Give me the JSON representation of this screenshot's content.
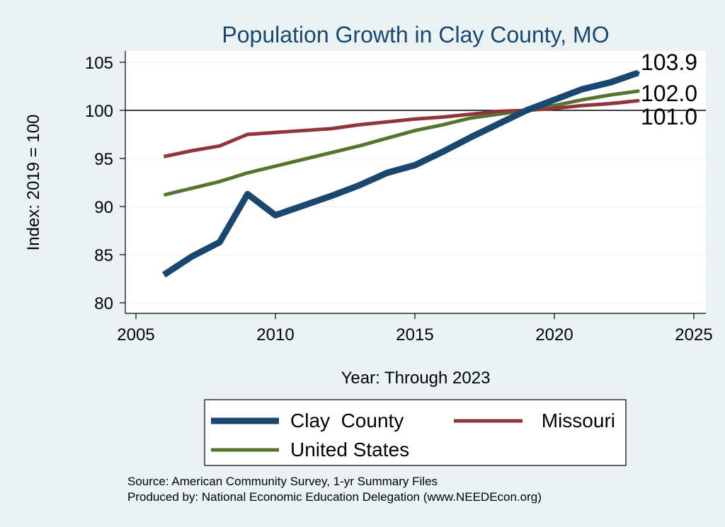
{
  "chart_data": {
    "type": "line",
    "title": "Population Growth in Clay County, MO",
    "xlabel": "Year: Through 2023",
    "ylabel": "Index: 2019 = 100",
    "xlim": [
      2005,
      2025
    ],
    "ylim": [
      80,
      105
    ],
    "x_ticks": [
      "2005",
      "2010",
      "2015",
      "2020",
      "2025"
    ],
    "y_ticks": [
      "80",
      "85",
      "90",
      "95",
      "100",
      "105"
    ],
    "reference_line": 100,
    "grid": true,
    "legend_position": "bottom",
    "x": [
      2006,
      2007,
      2008,
      2009,
      2010,
      2011,
      2012,
      2013,
      2014,
      2015,
      2016,
      2017,
      2018,
      2019,
      2020,
      2021,
      2022,
      2023
    ],
    "series": [
      {
        "name": "Clay  County",
        "color": "#1a476f",
        "values": [
          82.9,
          84.8,
          86.3,
          91.3,
          89.1,
          90.1,
          91.1,
          92.2,
          93.5,
          94.3,
          95.7,
          97.2,
          98.6,
          100.0,
          101.1,
          102.2,
          102.9,
          103.9
        ],
        "end_label": "103.9"
      },
      {
        "name": "Missouri",
        "color": "#90353b",
        "values": [
          95.2,
          95.8,
          96.3,
          97.5,
          97.7,
          97.9,
          98.1,
          98.5,
          98.8,
          99.1,
          99.3,
          99.6,
          99.9,
          100.0,
          100.2,
          100.5,
          100.7,
          101.0
        ],
        "end_label": "101.0"
      },
      {
        "name": "United States",
        "color": "#55752f",
        "values": [
          91.2,
          91.9,
          92.6,
          93.5,
          94.2,
          94.9,
          95.6,
          96.3,
          97.1,
          97.9,
          98.5,
          99.2,
          99.6,
          100.0,
          100.5,
          101.1,
          101.6,
          102.0
        ],
        "end_label": "102.0"
      }
    ]
  },
  "source_line": "Source: American Community Survey, 1-yr Summary Files",
  "produced_line": "Produced by: National Economic Education Delegation (www.NEEDEcon.org)"
}
